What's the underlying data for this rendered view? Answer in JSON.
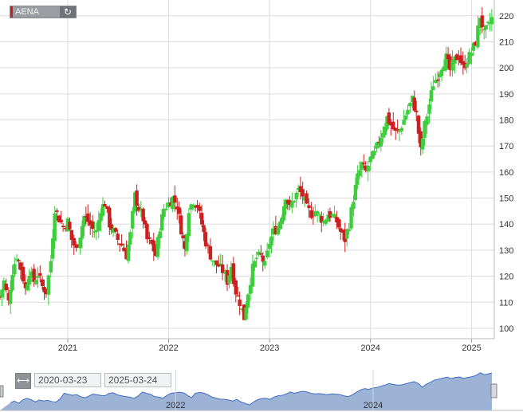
{
  "symbol": "AENA",
  "refresh_icon": "refresh-icon",
  "range": {
    "from": "2020-03-23",
    "to": "2025-03-24",
    "icon": "range-arrows-icon"
  },
  "colors": {
    "up": "#3dcd3d",
    "down": "#cc1f1f",
    "grid": "#dcdcdc",
    "nav_fill": "#9cb3d6",
    "nav_line": "#3f6ec2"
  },
  "navigator_years": [
    "2022",
    "2024"
  ],
  "chart_data": {
    "type": "candlestick",
    "title": "",
    "xlabel": "",
    "ylabel": "",
    "x_ticks": [
      "2021",
      "2022",
      "2023",
      "2024",
      "2025"
    ],
    "y_ticks": [
      100,
      110,
      120,
      130,
      140,
      150,
      160,
      170,
      180,
      190,
      200,
      210,
      220
    ],
    "ylim": [
      96,
      223
    ],
    "xlim": [
      "2020-05-01",
      "2025-03-24"
    ],
    "grid": true,
    "series": [
      {
        "weekly_close": [
          [
            "2020-05-01",
            112
          ],
          [
            "2020-05-15",
            118
          ],
          [
            "2020-06-01",
            110
          ],
          [
            "2020-06-15",
            122
          ],
          [
            "2020-07-01",
            128
          ],
          [
            "2020-07-15",
            123
          ],
          [
            "2020-08-01",
            115
          ],
          [
            "2020-08-15",
            122
          ],
          [
            "2020-09-01",
            118
          ],
          [
            "2020-09-15",
            121
          ],
          [
            "2020-10-01",
            116
          ],
          [
            "2020-10-15",
            114
          ],
          [
            "2020-11-01",
            126
          ],
          [
            "2020-11-15",
            146
          ],
          [
            "2020-12-01",
            142
          ],
          [
            "2020-12-15",
            139
          ],
          [
            "2021-01-01",
            141
          ],
          [
            "2021-01-15",
            134
          ],
          [
            "2021-02-01",
            130
          ],
          [
            "2021-02-15",
            136
          ],
          [
            "2021-03-01",
            143
          ],
          [
            "2021-03-15",
            141
          ],
          [
            "2021-04-01",
            138
          ],
          [
            "2021-04-15",
            137
          ],
          [
            "2021-05-01",
            146
          ],
          [
            "2021-05-15",
            148
          ],
          [
            "2021-06-01",
            140
          ],
          [
            "2021-06-15",
            137
          ],
          [
            "2021-07-01",
            134
          ],
          [
            "2021-07-15",
            132
          ],
          [
            "2021-08-01",
            128
          ],
          [
            "2021-08-15",
            136
          ],
          [
            "2021-09-01",
            151
          ],
          [
            "2021-09-15",
            146
          ],
          [
            "2021-10-01",
            142
          ],
          [
            "2021-10-15",
            134
          ],
          [
            "2021-11-01",
            132
          ],
          [
            "2021-11-15",
            128
          ],
          [
            "2021-12-01",
            139
          ],
          [
            "2021-12-15",
            146
          ],
          [
            "2022-01-01",
            148
          ],
          [
            "2022-01-15",
            150
          ],
          [
            "2022-02-01",
            147
          ],
          [
            "2022-02-15",
            138
          ],
          [
            "2022-03-01",
            130
          ],
          [
            "2022-03-15",
            146
          ],
          [
            "2022-04-01",
            149
          ],
          [
            "2022-04-15",
            147
          ],
          [
            "2022-05-01",
            140
          ],
          [
            "2022-05-15",
            133
          ],
          [
            "2022-06-01",
            128
          ],
          [
            "2022-06-15",
            125
          ],
          [
            "2022-07-01",
            124
          ],
          [
            "2022-07-15",
            122
          ],
          [
            "2022-08-01",
            118
          ],
          [
            "2022-08-15",
            124
          ],
          [
            "2022-09-01",
            114
          ],
          [
            "2022-09-15",
            110
          ],
          [
            "2022-10-01",
            104
          ],
          [
            "2022-10-15",
            114
          ],
          [
            "2022-11-01",
            123
          ],
          [
            "2022-11-15",
            127
          ],
          [
            "2022-12-01",
            128
          ],
          [
            "2022-12-15",
            124
          ],
          [
            "2023-01-01",
            133
          ],
          [
            "2023-01-15",
            137
          ],
          [
            "2023-02-01",
            139
          ],
          [
            "2023-02-15",
            144
          ],
          [
            "2023-03-01",
            151
          ],
          [
            "2023-03-15",
            146
          ],
          [
            "2023-04-01",
            150
          ],
          [
            "2023-04-15",
            153
          ],
          [
            "2023-05-01",
            151
          ],
          [
            "2023-05-15",
            146
          ],
          [
            "2023-06-01",
            144
          ],
          [
            "2023-06-15",
            145
          ],
          [
            "2023-07-01",
            143
          ],
          [
            "2023-07-15",
            141
          ],
          [
            "2023-08-01",
            144
          ],
          [
            "2023-08-15",
            143
          ],
          [
            "2023-09-01",
            141
          ],
          [
            "2023-09-15",
            137
          ],
          [
            "2023-10-01",
            134
          ],
          [
            "2023-10-15",
            140
          ],
          [
            "2023-11-01",
            150
          ],
          [
            "2023-11-15",
            158
          ],
          [
            "2023-12-01",
            163
          ],
          [
            "2023-12-15",
            160
          ],
          [
            "2024-01-01",
            165
          ],
          [
            "2024-01-15",
            167
          ],
          [
            "2024-02-01",
            172
          ],
          [
            "2024-02-15",
            176
          ],
          [
            "2024-03-01",
            181
          ],
          [
            "2024-03-15",
            178
          ],
          [
            "2024-04-01",
            175
          ],
          [
            "2024-04-15",
            176
          ],
          [
            "2024-05-01",
            180
          ],
          [
            "2024-05-15",
            184
          ],
          [
            "2024-06-01",
            188
          ],
          [
            "2024-06-15",
            182
          ],
          [
            "2024-07-01",
            168
          ],
          [
            "2024-07-15",
            178
          ],
          [
            "2024-08-01",
            186
          ],
          [
            "2024-08-15",
            194
          ],
          [
            "2024-09-01",
            197
          ],
          [
            "2024-09-15",
            201
          ],
          [
            "2024-10-01",
            204
          ],
          [
            "2024-10-15",
            199
          ],
          [
            "2024-11-01",
            203
          ],
          [
            "2024-11-15",
            205
          ],
          [
            "2024-12-01",
            200
          ],
          [
            "2024-12-15",
            203
          ],
          [
            "2025-01-01",
            206
          ],
          [
            "2025-01-15",
            210
          ],
          [
            "2025-02-01",
            220
          ],
          [
            "2025-02-15",
            213
          ],
          [
            "2025-03-01",
            216
          ],
          [
            "2025-03-15",
            219
          ]
        ]
      }
    ]
  }
}
